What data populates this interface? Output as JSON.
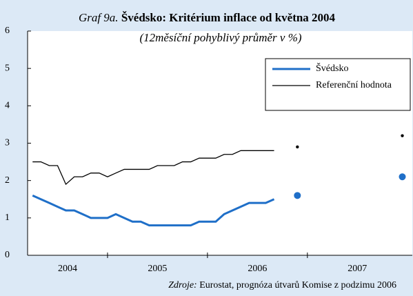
{
  "chart_data": {
    "type": "line",
    "title_prefix": "Graf 9a.",
    "title": "Švédsko: Kritérium inflace od května 2004",
    "subtitle": "(12měsíční pohyblivý průměr v %)",
    "source_label": "Zdroje:",
    "source": "Eurostat, prognóza útvarů Komise z podzimu 2006",
    "x": [
      2004.25,
      2004.333,
      2004.417,
      2004.5,
      2004.583,
      2004.667,
      2004.75,
      2004.833,
      2004.917,
      2005.0,
      2005.083,
      2005.167,
      2005.25,
      2005.333,
      2005.417,
      2005.5,
      2005.583,
      2005.667,
      2005.75,
      2005.833,
      2005.917,
      2006.0,
      2006.083,
      2006.167,
      2006.25,
      2006.333,
      2006.417,
      2006.5,
      2006.583,
      2006.667
    ],
    "series": [
      {
        "name": "Švédsko",
        "color": "#1f6fc8",
        "values": [
          1.6,
          1.5,
          1.4,
          1.3,
          1.2,
          1.2,
          1.1,
          1.0,
          1.0,
          1.0,
          1.1,
          1.0,
          0.9,
          0.9,
          0.8,
          0.8,
          0.8,
          0.8,
          0.8,
          0.8,
          0.9,
          0.9,
          0.9,
          1.1,
          1.2,
          1.3,
          1.4,
          1.4,
          1.4,
          1.5
        ],
        "forecast_x": [
          2006.9,
          2007.95
        ],
        "forecast": [
          1.6,
          2.1
        ]
      },
      {
        "name": "Referenční hodnota",
        "color": "#000000",
        "values": [
          2.5,
          2.5,
          2.4,
          2.4,
          1.9,
          2.1,
          2.1,
          2.2,
          2.2,
          2.1,
          2.2,
          2.3,
          2.3,
          2.3,
          2.3,
          2.4,
          2.4,
          2.4,
          2.5,
          2.5,
          2.6,
          2.6,
          2.6,
          2.7,
          2.7,
          2.8,
          2.8,
          2.8,
          2.8,
          2.8
        ],
        "forecast_x": [
          2006.9,
          2007.95
        ],
        "forecast": [
          2.9,
          3.2
        ]
      }
    ],
    "xlim": [
      2004.2,
      2008.05
    ],
    "xticks": [
      {
        "value": 2004.6,
        "label": "2004"
      },
      {
        "value": 2005.5,
        "label": "2005"
      },
      {
        "value": 2006.5,
        "label": "2006"
      },
      {
        "value": 2007.5,
        "label": "2007"
      }
    ],
    "x_separators": [
      2005,
      2006,
      2007
    ],
    "ylim": [
      0,
      6
    ],
    "yticks": [
      0,
      1,
      2,
      3,
      4,
      5,
      6
    ],
    "legend": "upper right"
  }
}
